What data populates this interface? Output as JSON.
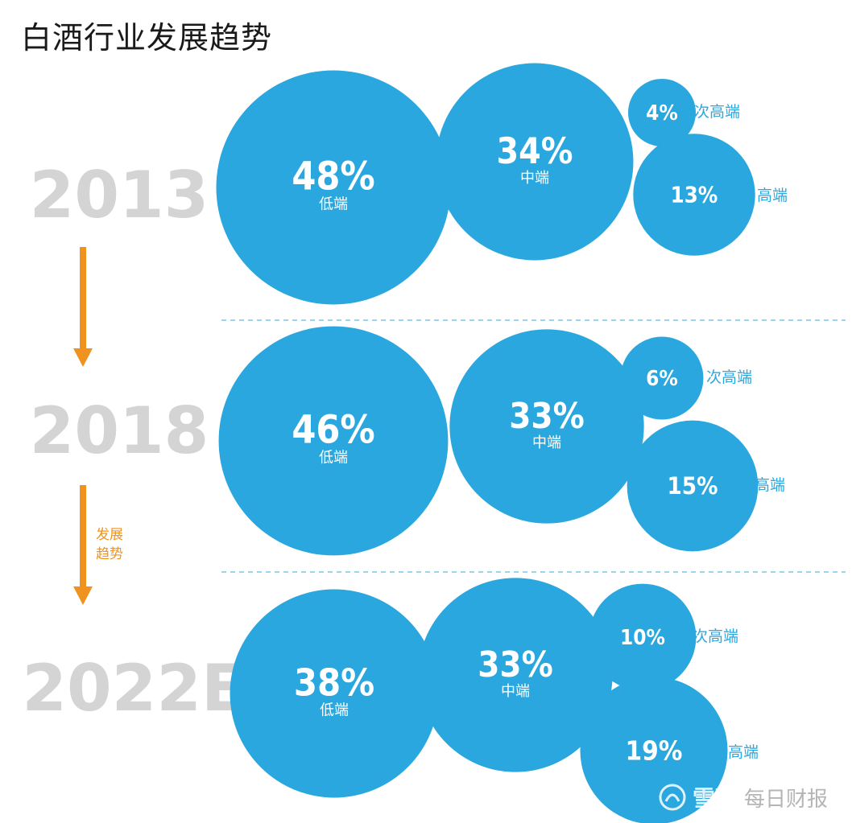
{
  "title": "白酒行业发展趋势",
  "arrow_label": [
    "发展",
    "趋势"
  ],
  "watermark": {
    "logo": "xueqiu-logo-icon",
    "brand": "雪球",
    "source": "每日财报"
  },
  "colors": {
    "bubble": "#2aa7de",
    "year": "#d4d4d4",
    "arrow": "#f0921e",
    "divider": "#7cc6e8"
  },
  "chart_data": {
    "type": "bubble",
    "title": "白酒行业发展趋势",
    "unit": "%",
    "categories": [
      "低端",
      "中端",
      "次高端",
      "高端"
    ],
    "years": [
      {
        "year": "2013",
        "shares": [
          {
            "segment": "低端",
            "value": 48
          },
          {
            "segment": "中端",
            "value": 34
          },
          {
            "segment": "次高端",
            "value": 4
          },
          {
            "segment": "高端",
            "value": 13
          }
        ]
      },
      {
        "year": "2018",
        "shares": [
          {
            "segment": "低端",
            "value": 46
          },
          {
            "segment": "中端",
            "value": 33
          },
          {
            "segment": "次高端",
            "value": 6
          },
          {
            "segment": "高端",
            "value": 15
          }
        ]
      },
      {
        "year": "2022E",
        "shares": [
          {
            "segment": "低端",
            "value": 38
          },
          {
            "segment": "中端",
            "value": 33
          },
          {
            "segment": "次高端",
            "value": 10
          },
          {
            "segment": "高端",
            "value": 19
          }
        ]
      }
    ]
  }
}
